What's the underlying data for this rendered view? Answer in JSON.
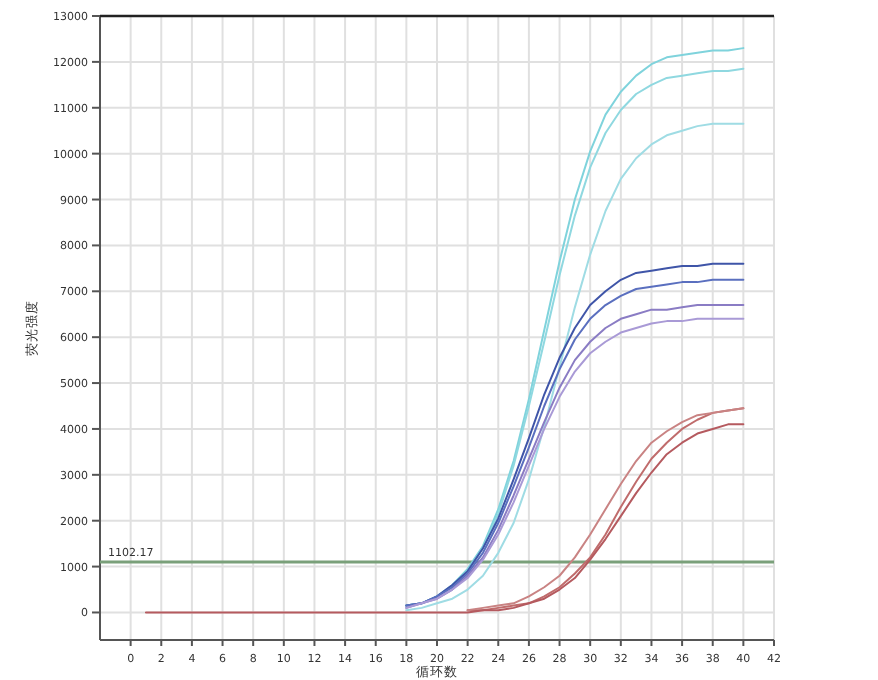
{
  "chart_data": {
    "type": "line",
    "xlabel": "循环数",
    "ylabel": "荧光强度",
    "xlim": [
      -2,
      42
    ],
    "ylim": [
      -600,
      13000
    ],
    "xticks": [
      0,
      2,
      4,
      6,
      8,
      10,
      12,
      14,
      16,
      18,
      20,
      22,
      24,
      26,
      28,
      30,
      32,
      34,
      36,
      38,
      40,
      42
    ],
    "yticks": [
      0,
      1000,
      2000,
      3000,
      4000,
      5000,
      6000,
      7000,
      8000,
      9000,
      10000,
      11000,
      12000,
      13000
    ],
    "grid": true,
    "ref_lines": [
      {
        "axis": "y",
        "value": 1102.17,
        "label": "1102.17",
        "color": "#7aa07a"
      }
    ],
    "x": [
      1,
      4,
      8,
      12,
      16,
      18,
      19,
      20,
      21,
      22,
      23,
      24,
      25,
      26,
      27,
      28,
      29,
      30,
      31,
      32,
      33,
      34,
      35,
      36,
      37,
      38,
      39,
      40
    ],
    "series": [
      {
        "color": "#7fd3dc",
        "values": [
          null,
          null,
          null,
          null,
          null,
          150,
          200,
          350,
          600,
          950,
          1450,
          2250,
          3300,
          4650,
          6150,
          7650,
          9000,
          10050,
          10850,
          11350,
          11700,
          11950,
          12100,
          12150,
          12200,
          12250,
          12250,
          12300
        ]
      },
      {
        "color": "#8fd8e0",
        "values": [
          null,
          null,
          null,
          null,
          null,
          150,
          200,
          350,
          550,
          900,
          1400,
          2150,
          3200,
          4500,
          5900,
          7350,
          8650,
          9700,
          10450,
          10950,
          11300,
          11500,
          11650,
          11700,
          11750,
          11800,
          11800,
          11850
        ]
      },
      {
        "color": "#9fdce4",
        "values": [
          null,
          null,
          null,
          null,
          null,
          50,
          100,
          200,
          300,
          500,
          800,
          1300,
          1950,
          2900,
          4050,
          5350,
          6650,
          7800,
          8750,
          9450,
          9900,
          10200,
          10400,
          10500,
          10600,
          10650,
          10650,
          10650
        ]
      },
      {
        "color": "#3f55a8",
        "values": [
          null,
          null,
          null,
          null,
          null,
          150,
          200,
          350,
          600,
          900,
          1400,
          2050,
          2900,
          3800,
          4750,
          5550,
          6200,
          6700,
          7000,
          7250,
          7400,
          7450,
          7500,
          7550,
          7550,
          7600,
          7600,
          7600
        ]
      },
      {
        "color": "#5a6fbf",
        "values": [
          null,
          null,
          null,
          null,
          null,
          150,
          200,
          350,
          550,
          850,
          1300,
          1950,
          2750,
          3600,
          4500,
          5300,
          5950,
          6400,
          6700,
          6900,
          7050,
          7100,
          7150,
          7200,
          7200,
          7250,
          7250,
          7250
        ]
      },
      {
        "color": "#8a7cc4",
        "values": [
          null,
          null,
          null,
          null,
          null,
          100,
          200,
          300,
          500,
          800,
          1200,
          1800,
          2550,
          3350,
          4150,
          4900,
          5500,
          5900,
          6200,
          6400,
          6500,
          6600,
          6600,
          6650,
          6700,
          6700,
          6700,
          6700
        ]
      },
      {
        "color": "#a99ad6",
        "values": [
          null,
          null,
          null,
          null,
          null,
          100,
          200,
          300,
          500,
          750,
          1150,
          1700,
          2400,
          3200,
          4000,
          4700,
          5250,
          5650,
          5900,
          6100,
          6200,
          6300,
          6350,
          6350,
          6400,
          6400,
          6400,
          6400
        ]
      },
      {
        "color": "#c06c6c",
        "values": [
          null,
          null,
          null,
          null,
          null,
          null,
          null,
          null,
          null,
          50,
          50,
          100,
          150,
          200,
          350,
          550,
          850,
          1200,
          1700,
          2300,
          2850,
          3350,
          3700,
          4000,
          4200,
          4350,
          4400,
          4450
        ]
      },
      {
        "color": "#c98383",
        "values": [
          null,
          null,
          null,
          null,
          null,
          null,
          null,
          null,
          null,
          50,
          100,
          150,
          200,
          350,
          550,
          800,
          1200,
          1700,
          2250,
          2800,
          3300,
          3700,
          3950,
          4150,
          4300,
          4350,
          4400,
          4450
        ]
      },
      {
        "color": "#b55a5f",
        "values": [
          0,
          0,
          0,
          0,
          0,
          0,
          0,
          0,
          0,
          0,
          50,
          50,
          100,
          200,
          300,
          500,
          750,
          1150,
          1600,
          2100,
          2600,
          3050,
          3450,
          3700,
          3900,
          4000,
          4100,
          4100
        ]
      }
    ]
  }
}
